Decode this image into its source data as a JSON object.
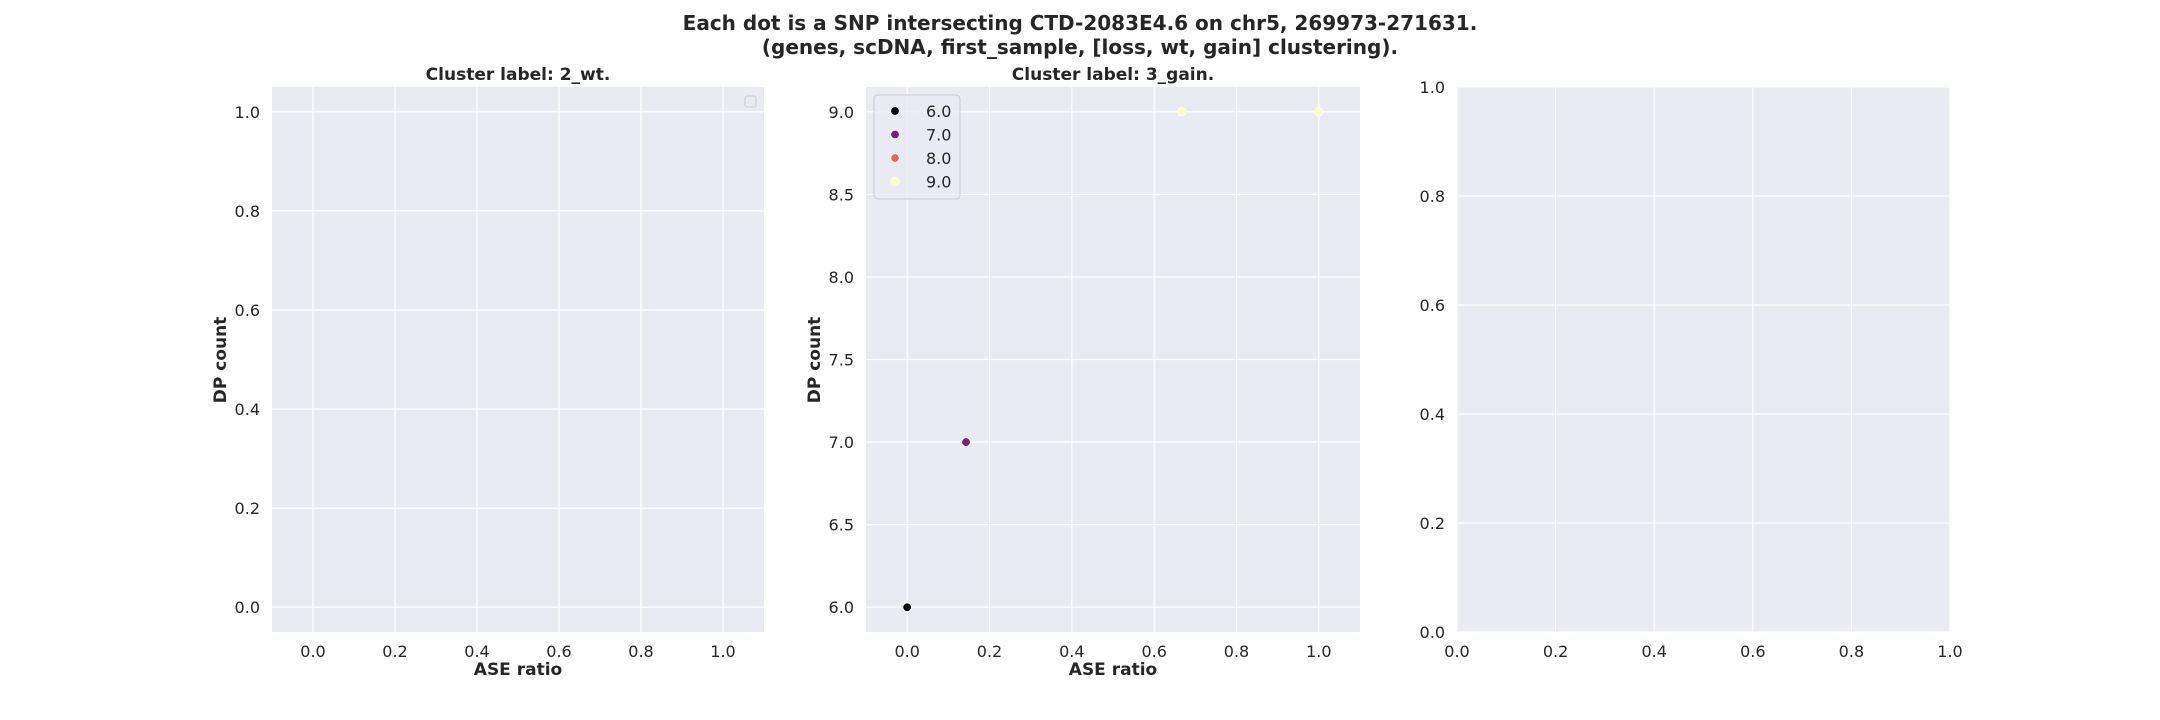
{
  "figure": {
    "title_line1": "Each dot is a SNP intersecting CTD-2083E4.6 on chr5, 269973-271631.",
    "title_line2": "(genes, scDNA, first_sample, [loss, wt, gain] clustering)."
  },
  "colors": {
    "axes_background": "#eaeaf2",
    "grid": "#ffffff",
    "text": "#262626"
  },
  "chart_data": [
    {
      "type": "scatter",
      "title": "Cluster label: 2_wt.",
      "xlabel": "ASE ratio",
      "ylabel": "DP count",
      "xlim": [
        -0.1,
        1.1
      ],
      "ylim": [
        -0.05,
        1.05
      ],
      "xticks": [
        0.0,
        0.2,
        0.4,
        0.6,
        0.8,
        1.0
      ],
      "yticks": [
        0.0,
        0.2,
        0.4,
        0.6,
        0.8,
        1.0
      ],
      "grid": true,
      "legend": {
        "placement": "top-right",
        "entries": []
      },
      "series": []
    },
    {
      "type": "scatter",
      "title": "Cluster label: 3_gain.",
      "xlabel": "ASE ratio",
      "ylabel": "DP count",
      "xlim": [
        -0.1,
        1.1
      ],
      "ylim": [
        5.85,
        9.15
      ],
      "xticks": [
        0.0,
        0.2,
        0.4,
        0.6,
        0.8,
        1.0
      ],
      "yticks": [
        6.0,
        6.5,
        7.0,
        7.5,
        8.0,
        8.5,
        9.0
      ],
      "grid": true,
      "legend": {
        "placement": "top-left"
      },
      "series": [
        {
          "name": "6.0",
          "color": "#000004",
          "points": [
            {
              "x": 0.0,
              "y": 6.0
            }
          ]
        },
        {
          "name": "7.0",
          "color": "#721f81",
          "points": [
            {
              "x": 0.143,
              "y": 7.0
            }
          ]
        },
        {
          "name": "8.0",
          "color": "#f1605d",
          "points": []
        },
        {
          "name": "9.0",
          "color": "#fcfdbf",
          "points": [
            {
              "x": 0.667,
              "y": 9.0
            },
            {
              "x": 1.0,
              "y": 9.0
            }
          ]
        }
      ]
    },
    {
      "type": "scatter",
      "title": "",
      "xlabel": "",
      "ylabel": "",
      "xlim": [
        0.0,
        1.0
      ],
      "ylim": [
        0.0,
        1.0
      ],
      "xticks": [
        0.0,
        0.2,
        0.4,
        0.6,
        0.8,
        1.0
      ],
      "yticks": [
        0.0,
        0.2,
        0.4,
        0.6,
        0.8,
        1.0
      ],
      "grid": true,
      "series": []
    }
  ]
}
